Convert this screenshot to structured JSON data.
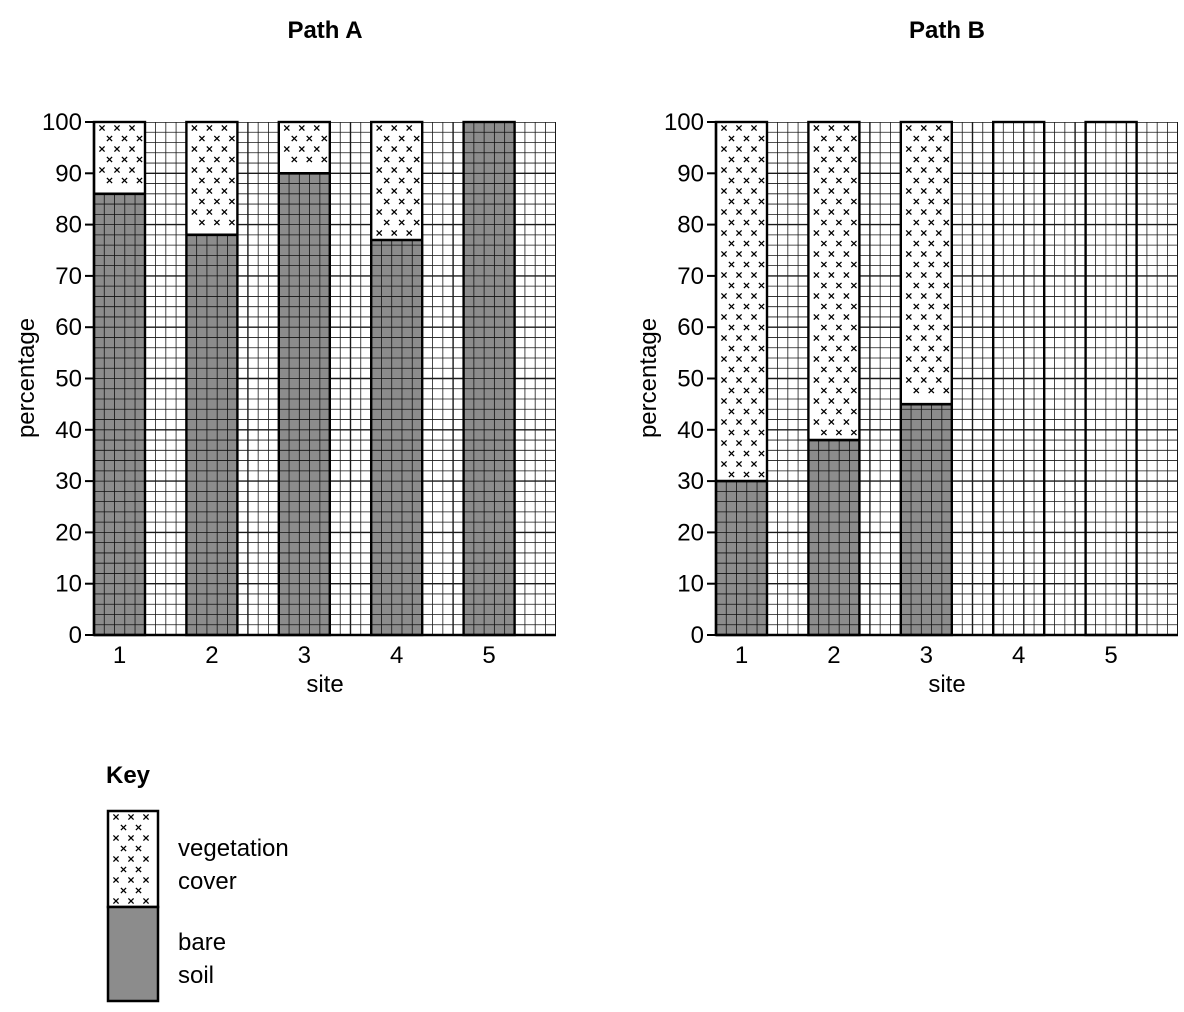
{
  "chart_data": [
    {
      "type": "bar",
      "stacked": true,
      "title": "Path A",
      "xlabel": "site",
      "ylabel": "percentage",
      "ylim": [
        0,
        100
      ],
      "yticks": [
        0,
        10,
        20,
        30,
        40,
        50,
        60,
        70,
        80,
        90,
        100
      ],
      "categories": [
        "1",
        "2",
        "3",
        "4",
        "5"
      ],
      "grid": true,
      "series": [
        {
          "key": "bare",
          "values": [
            86,
            78,
            90,
            77,
            100
          ]
        },
        {
          "key": "veg",
          "values": [
            14,
            22,
            10,
            23,
            0
          ]
        }
      ]
    },
    {
      "type": "bar",
      "stacked": true,
      "title": "Path B",
      "xlabel": "site",
      "ylabel": "percentage",
      "ylim": [
        0,
        100
      ],
      "yticks": [
        0,
        10,
        20,
        30,
        40,
        50,
        60,
        70,
        80,
        90,
        100
      ],
      "categories": [
        "1",
        "2",
        "3",
        "4",
        "5"
      ],
      "grid": true,
      "series": [
        {
          "key": "bare",
          "values": [
            30,
            38,
            45,
            0,
            0
          ]
        },
        {
          "key": "veg",
          "values": [
            70,
            62,
            55,
            0,
            0
          ]
        }
      ]
    }
  ],
  "key": {
    "title": "Key",
    "vegetation_lines": [
      "vegetation",
      "cover"
    ],
    "bare_lines": [
      "bare",
      "soil"
    ]
  },
  "colors": {
    "bare": "#8c8c8c",
    "grid": "#1a1a1a",
    "frame": "#000000"
  }
}
